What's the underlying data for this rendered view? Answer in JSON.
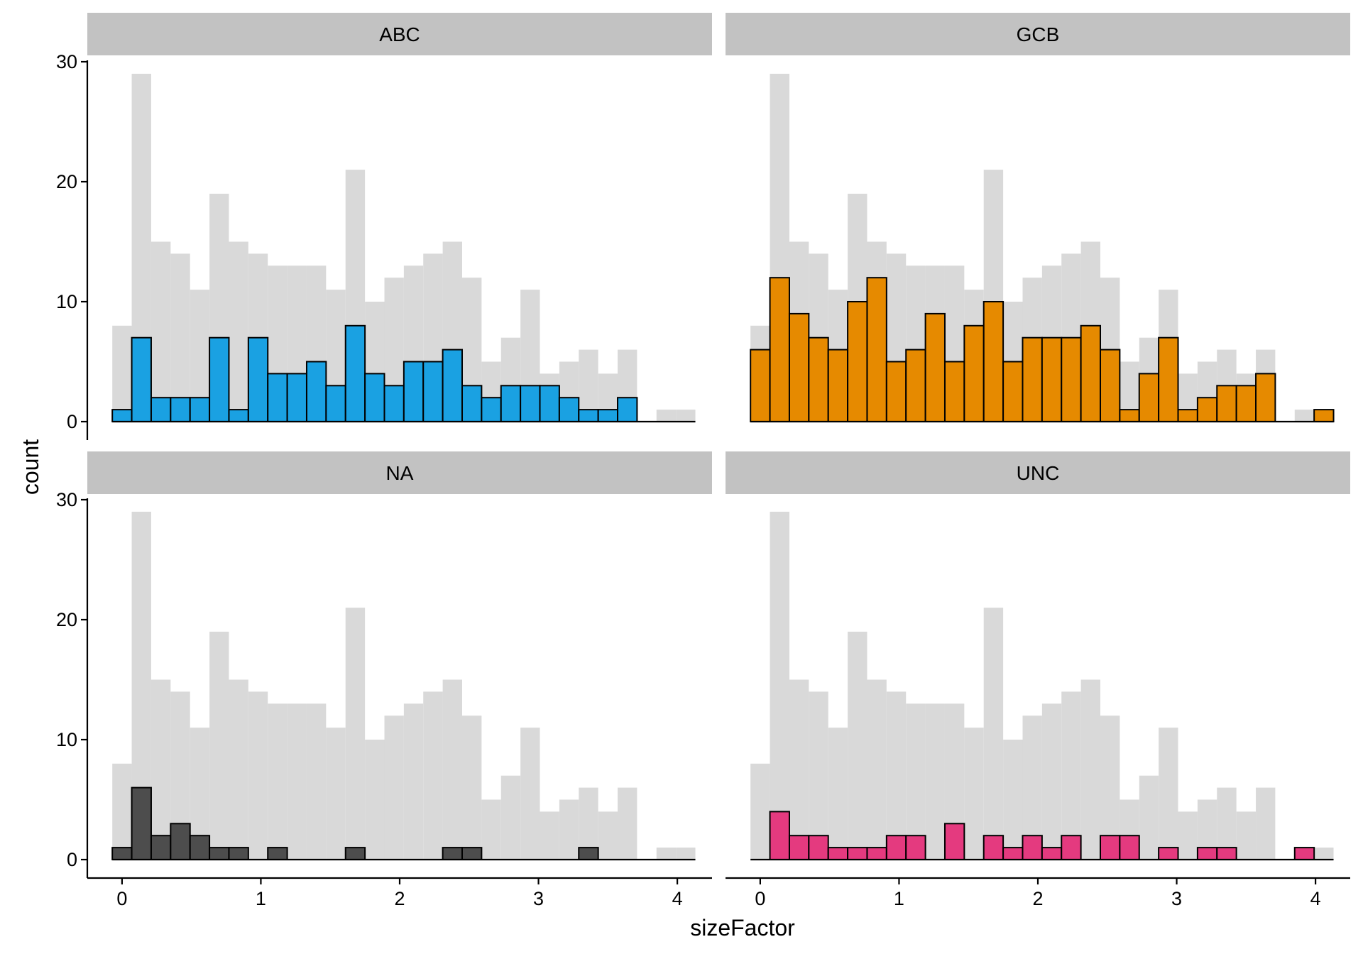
{
  "chart_data": {
    "type": "bar",
    "layout": "facet-grid 2x2",
    "xlabel": "sizeFactor",
    "ylabel": "count",
    "xlim": [
      -0.25,
      4.25
    ],
    "ylim": [
      0,
      30
    ],
    "xticks": [
      0,
      1,
      2,
      3,
      4
    ],
    "yticks": [
      0,
      10,
      20,
      30
    ],
    "bin_width": 0.14,
    "bin_start": -0.07,
    "background_series": {
      "color": "#D9D9D9",
      "values": [
        8,
        29,
        15,
        14,
        11,
        19,
        15,
        14,
        13,
        13,
        13,
        11,
        21,
        10,
        12,
        13,
        14,
        15,
        12,
        5,
        7,
        11,
        4,
        5,
        6,
        4,
        6,
        0,
        1,
        1
      ]
    },
    "panels": [
      {
        "title": "ABC",
        "color": "#1AA1E2",
        "values": [
          1,
          7,
          2,
          2,
          2,
          7,
          1,
          7,
          4,
          4,
          5,
          3,
          8,
          4,
          3,
          5,
          5,
          6,
          3,
          2,
          3,
          3,
          3,
          2,
          1,
          1,
          2,
          0,
          0,
          0
        ]
      },
      {
        "title": "GCB",
        "color": "#E68A00",
        "values": [
          6,
          12,
          9,
          7,
          6,
          10,
          12,
          5,
          6,
          9,
          5,
          8,
          10,
          5,
          7,
          7,
          7,
          8,
          6,
          1,
          4,
          7,
          1,
          2,
          3,
          3,
          4,
          0,
          0,
          1
        ]
      },
      {
        "title": "NA",
        "color": "#4D4D4D",
        "values": [
          1,
          6,
          2,
          3,
          2,
          1,
          1,
          0,
          1,
          0,
          0,
          0,
          1,
          0,
          0,
          0,
          0,
          1,
          1,
          0,
          0,
          0,
          0,
          0,
          1,
          0,
          0,
          0,
          0,
          0
        ]
      },
      {
        "title": "UNC",
        "color": "#E43A7F",
        "values": [
          0,
          4,
          2,
          2,
          1,
          1,
          1,
          2,
          2,
          0,
          3,
          0,
          2,
          1,
          2,
          1,
          2,
          0,
          2,
          2,
          0,
          1,
          0,
          1,
          1,
          0,
          0,
          0,
          1,
          0
        ]
      }
    ]
  }
}
